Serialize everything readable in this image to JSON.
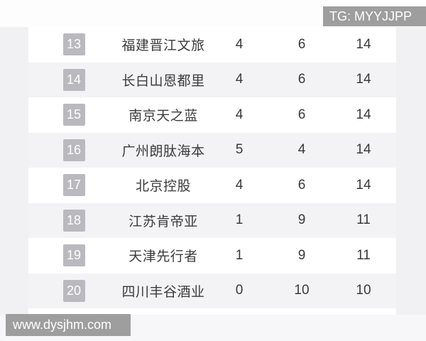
{
  "watermarks": {
    "top_right": "TG: MYYJJPP",
    "bottom_left": "www.dysjhm.com"
  },
  "colors": {
    "page_background": "#f1f1f3",
    "table_background": "#ffffff",
    "stripe": "#f3f3f6",
    "rank_badge": "#b9b9bf",
    "watermark_bar": "#9e9e9f",
    "text": "#3b3b3d"
  },
  "standings": {
    "rows": [
      {
        "rank": "13",
        "team": "福建晋江文旅",
        "wins": "4",
        "losses": "6",
        "points": "14"
      },
      {
        "rank": "14",
        "team": "长白山恩都里",
        "wins": "4",
        "losses": "6",
        "points": "14"
      },
      {
        "rank": "15",
        "team": "南京天之蓝",
        "wins": "4",
        "losses": "6",
        "points": "14"
      },
      {
        "rank": "16",
        "team": "广州朗肽海本",
        "wins": "5",
        "losses": "4",
        "points": "14"
      },
      {
        "rank": "17",
        "team": "北京控股",
        "wins": "4",
        "losses": "6",
        "points": "14"
      },
      {
        "rank": "18",
        "team": "江苏肯帝亚",
        "wins": "1",
        "losses": "9",
        "points": "11"
      },
      {
        "rank": "19",
        "team": "天津先行者",
        "wins": "1",
        "losses": "9",
        "points": "11"
      },
      {
        "rank": "20",
        "team": "四川丰谷酒业",
        "wins": "0",
        "losses": "10",
        "points": "10"
      }
    ]
  }
}
